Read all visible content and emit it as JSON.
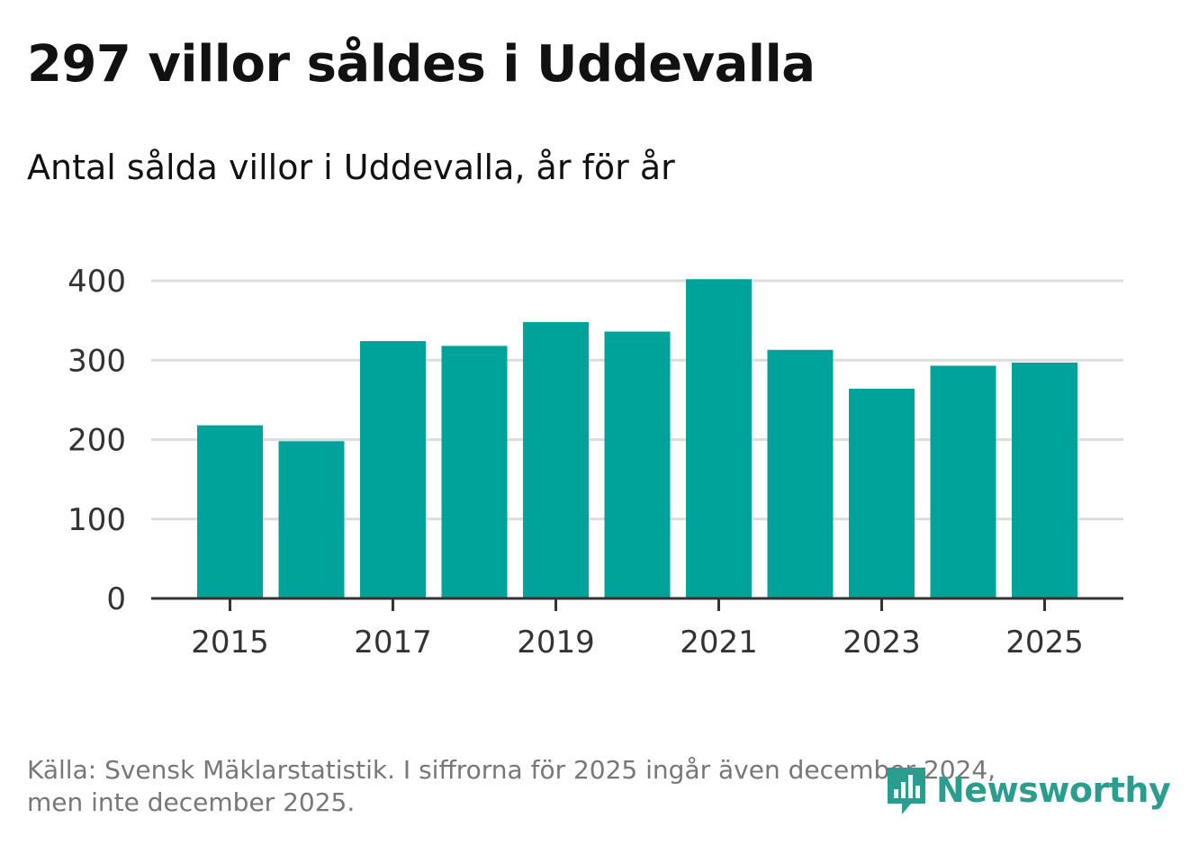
{
  "title": "297 villor såldes i Uddevalla",
  "subtitle": "Antal sålda villor i Uddevalla, år för år",
  "footer": {
    "source_line1": "Källa: Svensk Mäklarstatistik. I siffrorna för 2025 ingår även december 2024,",
    "source_line2": "men inte december 2025."
  },
  "logo": {
    "text": "Newsworthy",
    "icon": "newsworthy-logo-icon",
    "color": "#2a9d8f"
  },
  "colors": {
    "bar": "#00a39a",
    "grid": "#dddddd",
    "axis": "#333333"
  },
  "chart_data": {
    "type": "bar",
    "title": "Antal sålda villor i Uddevalla, år för år",
    "xlabel": "",
    "ylabel": "",
    "categories": [
      "2015",
      "2016",
      "2017",
      "2018",
      "2019",
      "2020",
      "2021",
      "2022",
      "2023",
      "2024",
      "2025"
    ],
    "values": [
      218,
      198,
      324,
      318,
      348,
      336,
      402,
      313,
      264,
      293,
      297
    ],
    "ylim": [
      0,
      400
    ],
    "yticks": [
      0,
      100,
      200,
      300,
      400
    ],
    "xticks": [
      "2015",
      "2017",
      "2019",
      "2021",
      "2023",
      "2025"
    ],
    "grid": true
  }
}
